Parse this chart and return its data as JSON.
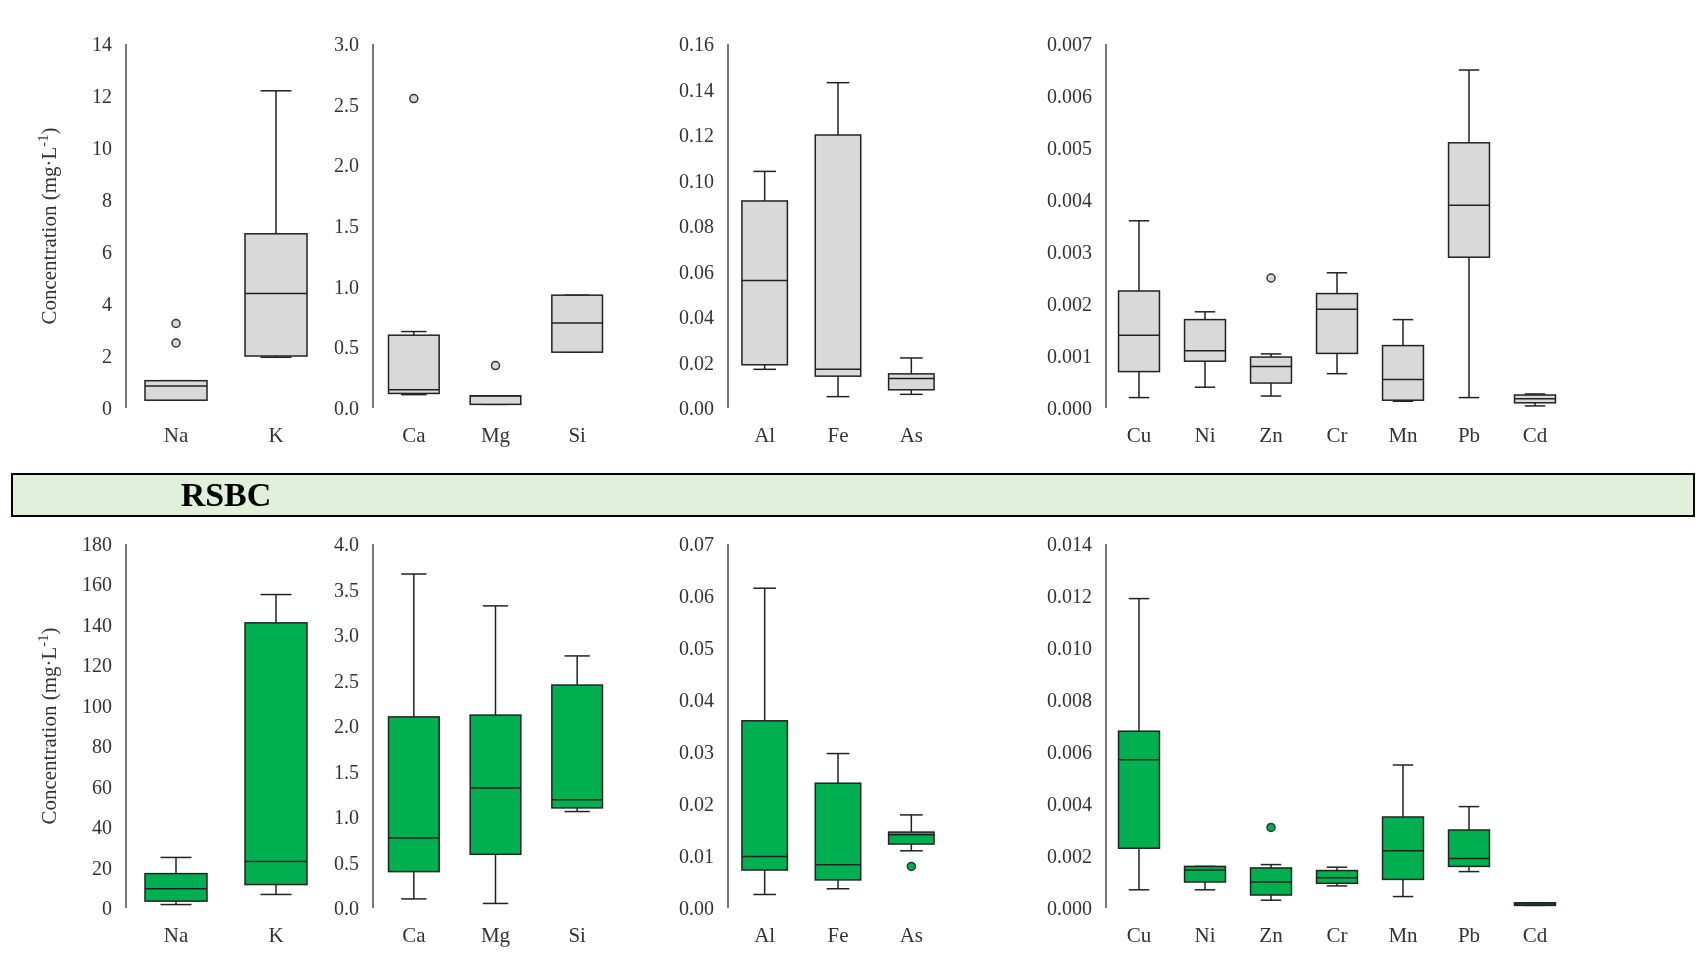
{
  "chart_data": [
    {
      "type": "box",
      "ylabel": "Concentration (mg·L$^{-1}$)",
      "categories": [
        "Na",
        "K"
      ],
      "color": "#d9d9d9",
      "ylim": [
        0,
        14
      ],
      "yticks": [
        0,
        2,
        4,
        6,
        8,
        10,
        12,
        14
      ],
      "boxes": [
        {
          "low": 0.3,
          "q1": 0.3,
          "median": 0.85,
          "q3": 1.05,
          "high": 1.05,
          "outliers": [
            2.5,
            3.25
          ]
        },
        {
          "low": 1.95,
          "q1": 2.0,
          "median": 4.4,
          "q3": 6.7,
          "high": 12.2
        }
      ]
    },
    {
      "type": "box",
      "categories": [
        "Ca",
        "Mg",
        "Si"
      ],
      "color": "#d9d9d9",
      "ylim": [
        0,
        3
      ],
      "yticks": [
        {
          "value": 0,
          "label": "0.0"
        },
        0.5,
        {
          "value": 1,
          "label": "1.0"
        },
        1.5,
        {
          "value": 2,
          "label": "2.0"
        },
        2.5,
        {
          "value": 3,
          "label": "3.0"
        }
      ],
      "boxes": [
        {
          "low": 0.11,
          "q1": 0.12,
          "median": 0.15,
          "q3": 0.6,
          "high": 0.63,
          "outliers": [
            2.55
          ]
        },
        {
          "low": 0.03,
          "q1": 0.03,
          "median": 0.1,
          "q3": 0.1,
          "high": 0.1,
          "outliers": [
            0.35
          ]
        },
        {
          "low": 0.46,
          "q1": 0.46,
          "median": 0.7,
          "q3": 0.93,
          "high": 0.93
        }
      ]
    },
    {
      "type": "box",
      "categories": [
        "Al",
        "Fe",
        "As"
      ],
      "color": "#d9d9d9",
      "ylim": [
        0,
        0.16
      ],
      "yticks": [
        {
          "value": 0,
          "label": "0.00"
        },
        0.02,
        0.04,
        0.06,
        0.08,
        {
          "value": 0.1,
          "label": "0.10"
        },
        0.12,
        0.14,
        0.16
      ],
      "boxes": [
        {
          "low": 0.017,
          "q1": 0.019,
          "median": 0.056,
          "q3": 0.091,
          "high": 0.104
        },
        {
          "low": 0.005,
          "q1": 0.014,
          "median": 0.017,
          "q3": 0.12,
          "high": 0.143
        },
        {
          "low": 0.006,
          "q1": 0.008,
          "median": 0.013,
          "q3": 0.015,
          "high": 0.022
        }
      ]
    },
    {
      "type": "box",
      "categories": [
        "Cu",
        "Ni",
        "Zn",
        "Cr",
        "Mn",
        "Pb",
        "Cd"
      ],
      "color": "#d9d9d9",
      "ylim": [
        0,
        0.007
      ],
      "yticks": [
        {
          "value": 0,
          "label": "0.000"
        },
        0.001,
        0.002,
        0.003,
        0.004,
        0.005,
        0.006,
        0.007
      ],
      "boxes": [
        {
          "low": 0.0002,
          "q1": 0.0007,
          "median": 0.0014,
          "q3": 0.00225,
          "high": 0.0036
        },
        {
          "low": 0.0004,
          "q1": 0.0009,
          "median": 0.0011,
          "q3": 0.0017,
          "high": 0.00185
        },
        {
          "low": 0.00023,
          "q1": 0.00048,
          "median": 0.0008,
          "q3": 0.00098,
          "high": 0.00104,
          "outliers": [
            0.0025
          ]
        },
        {
          "low": 0.00066,
          "q1": 0.00105,
          "median": 0.0019,
          "q3": 0.0022,
          "high": 0.0026
        },
        {
          "low": 0.00013,
          "q1": 0.00015,
          "median": 0.00055,
          "q3": 0.0012,
          "high": 0.0017
        },
        {
          "low": 0.0002,
          "q1": 0.0029,
          "median": 0.0039,
          "q3": 0.0051,
          "high": 0.0065
        },
        {
          "low": 4e-05,
          "q1": 0.0001,
          "median": 0.00018,
          "q3": 0.00025,
          "high": 0.00027
        }
      ]
    },
    {
      "type": "box",
      "title": "RSBC",
      "ylabel": "Concentration (mg·L$^{-1}$)",
      "categories": [
        "Na",
        "K"
      ],
      "color": "#00b050",
      "ylim": [
        0,
        180
      ],
      "yticks": [
        0,
        20,
        40,
        60,
        80,
        100,
        120,
        140,
        160,
        180
      ],
      "boxes": [
        {
          "low": 1.7,
          "q1": 3.4,
          "median": 9.5,
          "q3": 17,
          "high": 25
        },
        {
          "low": 6.7,
          "q1": 11.6,
          "median": 23,
          "q3": 141,
          "high": 155
        }
      ]
    },
    {
      "type": "box",
      "categories": [
        "Ca",
        "Mg",
        "Si"
      ],
      "color": "#00b050",
      "ylim": [
        0,
        4
      ],
      "yticks": [
        {
          "value": 0,
          "label": "0.0"
        },
        0.5,
        {
          "value": 1,
          "label": "1.0"
        },
        1.5,
        {
          "value": 2,
          "label": "2.0"
        },
        2.5,
        {
          "value": 3,
          "label": "3.0"
        },
        3.5,
        {
          "value": 4,
          "label": "4.0"
        }
      ],
      "boxes": [
        {
          "low": 0.1,
          "q1": 0.4,
          "median": 0.77,
          "q3": 2.1,
          "high": 3.67
        },
        {
          "low": 0.05,
          "q1": 0.59,
          "median": 1.32,
          "q3": 2.12,
          "high": 3.32
        },
        {
          "low": 1.06,
          "q1": 1.1,
          "median": 1.19,
          "q3": 2.45,
          "high": 2.77
        }
      ]
    },
    {
      "type": "box",
      "categories": [
        "Al",
        "Fe",
        "As"
      ],
      "color": "#00b050",
      "ylim": [
        0,
        0.07
      ],
      "yticks": [
        {
          "value": 0,
          "label": "0.00"
        },
        0.01,
        0.02,
        0.03,
        0.04,
        0.05,
        0.06,
        0.07
      ],
      "boxes": [
        {
          "low": 0.0026,
          "q1": 0.0073,
          "median": 0.0099,
          "q3": 0.036,
          "high": 0.0615
        },
        {
          "low": 0.0037,
          "q1": 0.0054,
          "median": 0.0083,
          "q3": 0.024,
          "high": 0.0297
        },
        {
          "low": 0.011,
          "q1": 0.0123,
          "median": 0.0141,
          "q3": 0.0146,
          "high": 0.0179,
          "outliers": [
            0.008
          ]
        }
      ]
    },
    {
      "type": "box",
      "categories": [
        "Cu",
        "Ni",
        "Zn",
        "Cr",
        "Mn",
        "Pb",
        "Cd"
      ],
      "color": "#00b050",
      "ylim": [
        0,
        0.014
      ],
      "yticks": [
        {
          "value": 0,
          "label": "0.000"
        },
        0.002,
        0.004,
        0.006,
        0.008,
        {
          "value": 0.01,
          "label": "0.010"
        },
        0.012,
        0.014
      ],
      "boxes": [
        {
          "low": 0.0007,
          "q1": 0.0023,
          "median": 0.0057,
          "q3": 0.0068,
          "high": 0.0119
        },
        {
          "low": 0.0007,
          "q1": 0.001,
          "median": 0.00146,
          "q3": 0.0016,
          "high": 0.0016
        },
        {
          "low": 0.0003,
          "q1": 0.0005,
          "median": 0.001,
          "q3": 0.00154,
          "high": 0.00167,
          "outliers": [
            0.0031
          ]
        },
        {
          "low": 0.00085,
          "q1": 0.00095,
          "median": 0.00116,
          "q3": 0.00144,
          "high": 0.00157
        },
        {
          "low": 0.00044,
          "q1": 0.0011,
          "median": 0.0022,
          "q3": 0.0035,
          "high": 0.0055
        },
        {
          "low": 0.0014,
          "q1": 0.0016,
          "median": 0.0019,
          "q3": 0.003,
          "high": 0.0039
        },
        {
          "low": 0.0001,
          "q1": 0.0001,
          "median": 0.00015,
          "q3": 0.0002,
          "high": 0.0002
        }
      ]
    }
  ]
}
